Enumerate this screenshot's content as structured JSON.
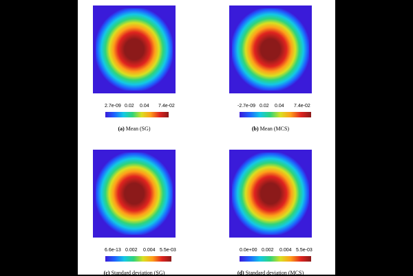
{
  "colormap": [
    "#3a1bd9",
    "#1e63ff",
    "#13c8e6",
    "#2fd47a",
    "#d9e021",
    "#ff9f1a",
    "#e0241f",
    "#8c1a1a"
  ],
  "panels": [
    {
      "ticks": [
        "2.7e-09",
        "0.02",
        "0.04",
        "7.4e-02"
      ],
      "caption_label": "(a)",
      "caption_text": "Mean (SG)"
    },
    {
      "ticks": [
        "-2.7e-09",
        "0.02",
        "0.04",
        "7.4e-02"
      ],
      "caption_label": "(b)",
      "caption_text": "Mean (MCS)"
    },
    {
      "ticks": [
        "6.6e-13",
        "0.002",
        "0.004",
        "5.5e-03"
      ],
      "caption_label": "(c)",
      "caption_text": "Standard deviation (SG)"
    },
    {
      "ticks": [
        "0.0e+00",
        "0.002",
        "0.004",
        "5.5e-03"
      ],
      "caption_label": "(d)",
      "caption_text": "Standard deviation (MCS)"
    }
  ]
}
